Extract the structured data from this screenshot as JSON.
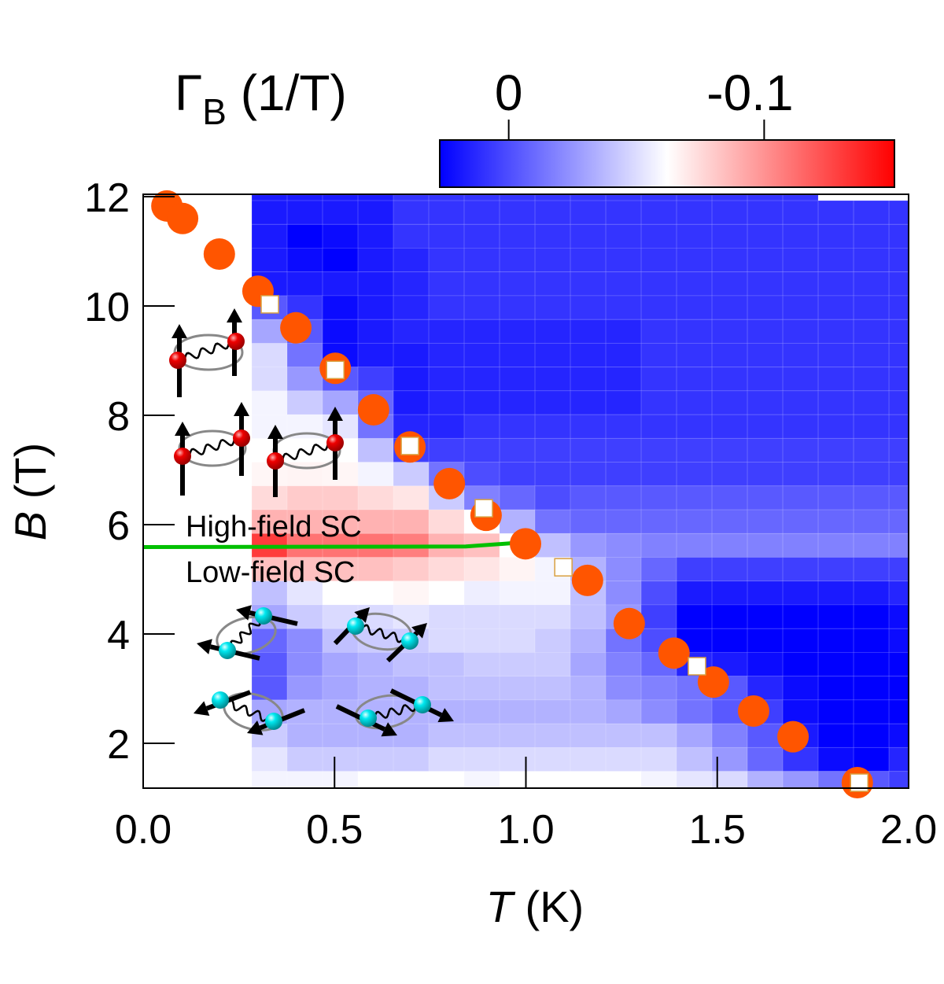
{
  "chart_data": {
    "type": "heatmap",
    "xlabel": {
      "symbol": "T",
      "unit": " (K)"
    },
    "ylabel": {
      "symbol": "B",
      "unit": " (T)"
    },
    "xlim": [
      0,
      2.0
    ],
    "ylim": [
      1.18,
      12.03
    ],
    "xticks": [
      0,
      0.5,
      1.0,
      1.5,
      2.0
    ],
    "xtick_labels": [
      "0.0",
      "0.5",
      "1.0",
      "1.5",
      "2.0"
    ],
    "yticks": [
      2,
      4,
      6,
      8,
      10,
      12
    ],
    "ytick_labels": [
      "2",
      "4",
      "6",
      "8",
      "10",
      "12"
    ],
    "grid": false,
    "colorbar": {
      "label_symbol": "Γ",
      "label_sub": "B",
      "label_unit": " (1/T)",
      "range": [
        0.027,
        -0.151
      ],
      "ticks": [
        0,
        -0.1
      ],
      "tick_labels": [
        "0",
        "-0.1"
      ],
      "placement": "top-right",
      "colors": {
        "low_end": "#0000ff",
        "center": "#ffffff",
        "high_end": "#ff0000"
      }
    },
    "heatmap": {
      "T_centers": [
        0.33,
        0.4225,
        0.515,
        0.6075,
        0.7,
        0.7925,
        0.885,
        0.9775,
        1.07,
        1.1625,
        1.255,
        1.3475,
        1.44,
        1.5325,
        1.625,
        1.7175,
        1.81,
        1.9025,
        1.995
      ],
      "T_step": 0.0925,
      "B_centers": [
        12.145,
        11.71,
        11.275,
        10.84,
        10.405,
        9.97,
        9.535,
        9.1,
        8.665,
        8.23,
        7.795,
        7.36,
        6.925,
        6.49,
        6.055,
        5.62,
        5.185,
        4.75,
        4.315,
        3.88,
        3.445,
        3.01,
        2.575,
        2.14,
        1.705,
        1.27
      ],
      "B_step": 0.435,
      "values": [
        [
          0.018,
          0.018,
          0.018,
          0.018,
          0.009,
          0.009,
          0.009,
          0.009,
          0.009,
          0.009,
          0.009,
          0.009,
          0.009,
          0.009,
          0.009,
          0.009,
          null,
          null,
          null
        ],
        [
          0.018,
          0.018,
          0.018,
          0.018,
          0.009,
          0.009,
          0.009,
          0.009,
          0.009,
          0.009,
          0.009,
          0.009,
          0.009,
          0.009,
          0.009,
          0.009,
          0.009,
          0.009,
          0.009
        ],
        [
          0.018,
          0.027,
          0.023,
          0.018,
          0.009,
          0.009,
          0.009,
          0.009,
          0.009,
          0.009,
          0.009,
          0.009,
          0.009,
          0.009,
          0.009,
          0.009,
          0.009,
          0.009,
          0.009
        ],
        [
          0.018,
          0.023,
          0.027,
          0.018,
          0.014,
          0.009,
          0.009,
          0.009,
          0.009,
          0.009,
          0.009,
          0.009,
          0.009,
          0.009,
          0.009,
          0.009,
          0.009,
          0.009,
          0.009
        ],
        [
          0.018,
          0.018,
          0.018,
          0.018,
          0.014,
          0.009,
          0.009,
          0.009,
          0.009,
          0.009,
          0.009,
          0.009,
          0.009,
          0.009,
          0.009,
          0.009,
          0.009,
          0.009,
          0.009
        ],
        [
          -0.004,
          0.009,
          0.023,
          0.018,
          0.014,
          0.009,
          0.009,
          0.009,
          0.009,
          0.009,
          0.009,
          0.009,
          0.009,
          0.009,
          0.009,
          0.009,
          0.009,
          0.009,
          0.009
        ],
        [
          -0.031,
          -0.004,
          0.023,
          0.018,
          0.014,
          0.014,
          0.014,
          0.014,
          0.014,
          0.014,
          0.014,
          0.009,
          0.009,
          0.009,
          0.009,
          0.009,
          0.009,
          0.009,
          0.009
        ],
        [
          -0.049,
          -0.013,
          0.023,
          0.018,
          0.018,
          0.014,
          0.014,
          0.014,
          0.014,
          0.014,
          0.014,
          0.009,
          0.009,
          0.009,
          0.009,
          0.009,
          0.009,
          0.009,
          0.009
        ],
        [
          -0.049,
          -0.026,
          -0.004,
          0.005,
          0.018,
          0.014,
          0.014,
          0.014,
          0.014,
          0.014,
          0.014,
          0.009,
          0.009,
          0.009,
          0.009,
          0.009,
          0.009,
          0.009,
          0.009
        ],
        [
          -0.058,
          -0.044,
          -0.031,
          -0.009,
          0.018,
          0.014,
          0.014,
          0.014,
          0.014,
          0.014,
          0.014,
          0.009,
          0.009,
          0.009,
          0.009,
          0.009,
          0.009,
          0.009,
          0.009
        ],
        [
          -0.058,
          -0.058,
          -0.053,
          -0.013,
          0.014,
          0.014,
          0.009,
          0.009,
          0.009,
          0.009,
          0.009,
          0.009,
          0.009,
          0.009,
          0.009,
          0.009,
          0.009,
          0.009,
          0.009
        ],
        [
          -0.062,
          -0.062,
          -0.062,
          -0.04,
          0.005,
          0.005,
          0.005,
          0.005,
          0.005,
          0.005,
          0.005,
          0.005,
          0.005,
          0.005,
          0.005,
          0.005,
          0.005,
          0.005,
          0.005
        ],
        [
          -0.065,
          -0.066,
          -0.065,
          -0.058,
          -0.044,
          -0.013,
          0.0,
          0.005,
          0.005,
          0.005,
          0.005,
          0.005,
          0.005,
          0.005,
          0.005,
          0.005,
          0.005,
          0.005,
          0.005
        ],
        [
          -0.075,
          -0.08,
          -0.08,
          -0.075,
          -0.071,
          -0.044,
          -0.018,
          -0.009,
          0.0,
          -0.004,
          -0.004,
          -0.004,
          -0.004,
          -0.004,
          -0.004,
          -0.004,
          -0.004,
          -0.004,
          -0.004
        ],
        [
          -0.089,
          -0.089,
          -0.089,
          -0.089,
          -0.089,
          -0.075,
          -0.062,
          -0.035,
          -0.013,
          -0.009,
          -0.009,
          -0.009,
          -0.009,
          -0.009,
          -0.009,
          -0.009,
          -0.009,
          -0.009,
          -0.009
        ],
        [
          -0.13,
          -0.111,
          -0.111,
          -0.111,
          -0.107,
          -0.089,
          -0.084,
          -0.062,
          -0.04,
          -0.026,
          -0.022,
          -0.018,
          -0.018,
          -0.018,
          -0.018,
          -0.018,
          -0.018,
          -0.018,
          -0.018
        ],
        [
          -0.084,
          -0.084,
          -0.084,
          -0.084,
          -0.08,
          -0.075,
          -0.071,
          -0.066,
          -0.058,
          -0.035,
          -0.022,
          -0.009,
          0.005,
          0.005,
          0.005,
          0.005,
          0.005,
          0.005,
          0.005
        ],
        [
          -0.04,
          -0.053,
          -0.062,
          -0.062,
          -0.065,
          -0.062,
          -0.056,
          -0.058,
          -0.058,
          -0.04,
          -0.022,
          0.0,
          0.018,
          0.018,
          0.018,
          0.018,
          0.018,
          0.018,
          0.014
        ],
        [
          -0.031,
          -0.044,
          -0.049,
          -0.049,
          -0.053,
          -0.049,
          -0.049,
          -0.049,
          -0.049,
          -0.04,
          -0.026,
          0.005,
          0.027,
          0.027,
          0.027,
          0.027,
          0.027,
          0.027,
          0.023
        ],
        [
          -0.009,
          -0.022,
          -0.04,
          -0.044,
          -0.044,
          -0.049,
          -0.049,
          -0.049,
          -0.044,
          -0.035,
          -0.013,
          0.0,
          0.027,
          0.027,
          0.027,
          0.027,
          0.027,
          0.027,
          0.023
        ],
        [
          -0.004,
          -0.022,
          -0.031,
          -0.035,
          -0.04,
          -0.04,
          -0.044,
          -0.044,
          -0.044,
          -0.031,
          -0.018,
          -0.009,
          0.014,
          0.018,
          0.023,
          0.027,
          0.027,
          0.027,
          0.027
        ],
        [
          -0.004,
          -0.026,
          -0.031,
          -0.035,
          -0.035,
          -0.04,
          -0.04,
          -0.04,
          -0.04,
          -0.035,
          -0.022,
          -0.018,
          -0.013,
          -0.004,
          0.014,
          0.023,
          0.027,
          0.027,
          0.027
        ],
        [
          -0.031,
          -0.035,
          -0.035,
          -0.035,
          -0.035,
          -0.035,
          -0.035,
          -0.035,
          -0.035,
          -0.035,
          -0.031,
          -0.022,
          -0.013,
          -0.004,
          0.005,
          0.023,
          0.027,
          0.027,
          0.027
        ],
        [
          -0.044,
          -0.035,
          -0.035,
          -0.035,
          -0.035,
          -0.04,
          -0.04,
          -0.04,
          -0.04,
          -0.04,
          -0.04,
          -0.04,
          -0.031,
          -0.018,
          -0.004,
          0.018,
          0.027,
          0.027,
          0.023
        ],
        [
          -0.053,
          -0.044,
          -0.044,
          -0.044,
          -0.044,
          -0.049,
          -0.049,
          -0.049,
          -0.049,
          -0.049,
          -0.049,
          -0.049,
          -0.04,
          -0.026,
          -0.009,
          0.009,
          0.023,
          0.027,
          0.014
        ],
        [
          -0.058,
          -0.058,
          -0.058,
          -0.062,
          -0.062,
          -0.062,
          -0.059,
          -0.062,
          -0.062,
          -0.062,
          -0.062,
          -0.058,
          -0.053,
          -0.049,
          -0.035,
          -0.026,
          -0.013,
          -0.004,
          0.005
        ]
      ]
    },
    "series": [
      {
        "marker": "circle",
        "color": "#ff5500",
        "points": [
          [
            0.062,
            11.83
          ],
          [
            0.103,
            11.6
          ],
          [
            0.199,
            10.95
          ],
          [
            0.3,
            10.27
          ],
          [
            0.399,
            9.6
          ],
          [
            0.502,
            8.86
          ],
          [
            0.602,
            8.1
          ],
          [
            0.697,
            7.42
          ],
          [
            0.8,
            6.75
          ],
          [
            0.896,
            6.17
          ],
          [
            0.999,
            5.65
          ],
          [
            1.161,
            4.98
          ],
          [
            1.27,
            4.19
          ],
          [
            1.387,
            3.65
          ],
          [
            1.49,
            3.12
          ],
          [
            1.595,
            2.59
          ],
          [
            1.698,
            2.12
          ],
          [
            1.866,
            1.28
          ]
        ]
      },
      {
        "marker": "square",
        "color": "#ffffff",
        "edge_color": "#d9a040",
        "points": [
          [
            0.331,
            10.03
          ],
          [
            0.502,
            8.83
          ],
          [
            0.697,
            7.44
          ],
          [
            0.89,
            6.3
          ],
          [
            1.098,
            5.22
          ],
          [
            1.447,
            3.41
          ],
          [
            1.871,
            1.28
          ]
        ]
      }
    ],
    "boundary_line": {
      "color": "#00c000",
      "points": [
        [
          0.0,
          5.59
        ],
        [
          0.843,
          5.6
        ],
        [
          0.962,
          5.66
        ]
      ]
    },
    "annotations": [
      "High-field SC",
      "Low-field SC"
    ]
  }
}
